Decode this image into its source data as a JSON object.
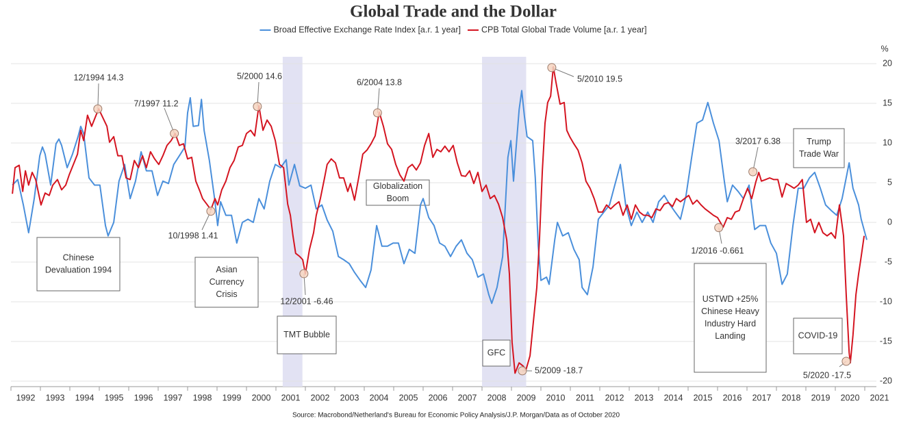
{
  "chart_data": {
    "type": "line",
    "title": "Global Trade and the Dollar",
    "y_label": "%",
    "source": "Source: Macrobond/Netherland's Bureau for Economic Policy Analysis/J.P. Morgan/Data as of October 2020",
    "xlim": [
      1992,
      2022
    ],
    "xticks": [
      1992,
      1993,
      1994,
      1995,
      1996,
      1997,
      1998,
      1999,
      2000,
      2001,
      2002,
      2003,
      2004,
      2005,
      2006,
      2007,
      2008,
      2009,
      2010,
      2011,
      2012,
      2013,
      2014,
      2015,
      2016,
      2017,
      2018,
      2019,
      2020,
      2021
    ],
    "ylim": [
      -20,
      20
    ],
    "yticks": [
      -20,
      -15,
      -10,
      -5,
      0,
      5,
      10,
      15,
      20
    ],
    "grid": true,
    "legend": "top",
    "shaded_regions": [
      [
        2001.23,
        2001.9
      ],
      [
        2008.0,
        2009.5
      ]
    ],
    "shade_color": "#e2e2f3",
    "series": [
      {
        "name": "Broad Effective Exchange Rate Index [a.r. 1 year]",
        "color": "#4a8fdb",
        "x": [
          1992.05,
          1992.23,
          1992.42,
          1992.6,
          1992.79,
          1992.98,
          1993.07,
          1993.16,
          1993.35,
          1993.53,
          1993.63,
          1993.72,
          1993.91,
          1994.09,
          1994.28,
          1994.37,
          1994.47,
          1994.65,
          1994.84,
          1995.02,
          1995.21,
          1995.3,
          1995.49,
          1995.67,
          1995.86,
          1996.05,
          1996.23,
          1996.42,
          1996.6,
          1996.79,
          1996.98,
          1997.16,
          1997.35,
          1997.53,
          1997.72,
          1997.91,
          1998.0,
          1998.09,
          1998.19,
          1998.37,
          1998.47,
          1998.56,
          1998.74,
          1998.93,
          1999.02,
          1999.12,
          1999.3,
          1999.49,
          1999.67,
          1999.86,
          2000.05,
          2000.23,
          2000.42,
          2000.6,
          2000.79,
          2000.98,
          2001.16,
          2001.35,
          2001.44,
          2001.63,
          2001.81,
          2002.0,
          2002.19,
          2002.37,
          2002.56,
          2002.74,
          2002.93,
          2003.12,
          2003.3,
          2003.49,
          2003.67,
          2003.86,
          2004.05,
          2004.23,
          2004.42,
          2004.6,
          2004.79,
          2004.98,
          2005.16,
          2005.35,
          2005.53,
          2005.72,
          2005.91,
          2006.0,
          2006.19,
          2006.37,
          2006.56,
          2006.74,
          2006.93,
          2007.12,
          2007.3,
          2007.49,
          2007.67,
          2007.86,
          2008.05,
          2008.23,
          2008.33,
          2008.51,
          2008.7,
          2008.88,
          2008.98,
          2009.07,
          2009.16,
          2009.26,
          2009.35,
          2009.44,
          2009.53,
          2009.72,
          2009.81,
          2009.91,
          2010.0,
          2010.19,
          2010.28,
          2010.47,
          2010.56,
          2010.74,
          2010.93,
          2011.12,
          2011.3,
          2011.4,
          2011.58,
          2011.77,
          2011.95,
          2012.14,
          2012.33,
          2012.51,
          2012.7,
          2012.88,
          2013.07,
          2013.26,
          2013.44,
          2013.63,
          2013.81,
          2014.0,
          2014.19,
          2014.37,
          2014.56,
          2014.74,
          2014.93,
          2015.12,
          2015.3,
          2015.49,
          2015.67,
          2015.86,
          2016.05,
          2016.23,
          2016.33,
          2016.51,
          2016.7,
          2016.88,
          2017.07,
          2017.26,
          2017.44,
          2017.63,
          2017.81,
          2018.0,
          2018.19,
          2018.37,
          2018.56,
          2018.74,
          2018.93,
          2019.12,
          2019.3,
          2019.49,
          2019.67,
          2019.86,
          2020.05,
          2020.23,
          2020.47,
          2020.6,
          2020.79,
          2020.88,
          2021.07
        ],
        "values": [
          4.7,
          5.4,
          2.2,
          -1.3,
          3.0,
          8.4,
          9.5,
          8.6,
          4.7,
          9.9,
          10.5,
          9.7,
          6.9,
          8.6,
          10.8,
          12.1,
          11.2,
          5.6,
          4.7,
          4.7,
          -0.4,
          -1.7,
          0.0,
          5.2,
          7.3,
          3.0,
          5.2,
          8.9,
          6.5,
          6.5,
          3.4,
          5.2,
          4.9,
          7.3,
          8.4,
          9.5,
          13.8,
          15.7,
          12.1,
          12.2,
          15.5,
          11.6,
          7.8,
          2.6,
          -0.4,
          2.6,
          0.9,
          0.9,
          -2.6,
          0.0,
          0.4,
          0.0,
          3.0,
          1.7,
          5.2,
          7.3,
          6.9,
          7.9,
          4.7,
          7.3,
          4.6,
          4.3,
          4.7,
          1.7,
          2.2,
          0.3,
          -1.1,
          -4.3,
          -4.7,
          -5.2,
          -6.3,
          -7.3,
          -8.2,
          -6.0,
          -0.4,
          -3.0,
          -3.0,
          -2.6,
          -2.6,
          -5.2,
          -3.4,
          -3.9,
          2.2,
          3.0,
          0.6,
          -0.4,
          -2.6,
          -3.0,
          -4.3,
          -3.0,
          -2.2,
          -3.9,
          -4.7,
          -6.9,
          -6.5,
          -9.1,
          -10.2,
          -8.2,
          -4.3,
          8.2,
          10.3,
          5.2,
          9.5,
          14.2,
          16.6,
          13.4,
          10.8,
          10.3,
          5.6,
          -3.0,
          -7.3,
          -6.9,
          -7.8,
          -2.2,
          0.0,
          -1.7,
          -1.3,
          -3.4,
          -4.7,
          -8.2,
          -9.1,
          -5.6,
          0.4,
          1.3,
          2.2,
          4.7,
          7.3,
          2.2,
          -0.4,
          1.3,
          0.0,
          1.3,
          0.0,
          2.6,
          3.4,
          2.3,
          1.3,
          0.4,
          3.4,
          8.2,
          12.5,
          12.9,
          15.1,
          12.5,
          10.3,
          5.2,
          2.6,
          4.7,
          3.9,
          3.0,
          4.7,
          -0.9,
          -0.4,
          -0.4,
          -2.6,
          -3.9,
          -7.8,
          -6.5,
          -0.4,
          4.3,
          4.3,
          5.6,
          6.3,
          4.3,
          2.2,
          1.5,
          0.9,
          3.0,
          7.5,
          4.3,
          2.2,
          0.4,
          -2.2
        ]
      },
      {
        "name": "CPB Total Global Trade Volume [a.r. 1 year]",
        "color": "#d41420",
        "x": [
          1992.05,
          1992.14,
          1992.28,
          1992.4,
          1992.49,
          1992.6,
          1992.72,
          1992.84,
          1993.02,
          1993.16,
          1993.3,
          1993.42,
          1993.58,
          1993.72,
          1993.86,
          1993.98,
          1994.12,
          1994.26,
          1994.37,
          1994.47,
          1994.6,
          1994.74,
          1994.88,
          1994.98,
          1995.12,
          1995.26,
          1995.35,
          1995.49,
          1995.63,
          1995.77,
          1995.91,
          1996.05,
          1996.19,
          1996.33,
          1996.47,
          1996.6,
          1996.74,
          1996.88,
          1997.02,
          1997.16,
          1997.3,
          1997.44,
          1997.58,
          1997.72,
          1997.86,
          1998.0,
          1998.14,
          1998.28,
          1998.42,
          1998.51,
          1998.65,
          1998.79,
          1998.93,
          1999.02,
          1999.16,
          1999.3,
          1999.44,
          1999.58,
          1999.72,
          1999.86,
          2000.0,
          2000.14,
          2000.28,
          2000.42,
          2000.56,
          2000.7,
          2000.84,
          2000.98,
          2001.12,
          2001.26,
          2001.4,
          2001.49,
          2001.58,
          2001.67,
          2001.81,
          2001.91,
          2002.0,
          2002.14,
          2002.28,
          2002.37,
          2002.51,
          2002.65,
          2002.74,
          2002.88,
          2003.02,
          2003.16,
          2003.3,
          2003.44,
          2003.53,
          2003.67,
          2003.81,
          2003.95,
          2004.09,
          2004.23,
          2004.37,
          2004.51,
          2004.65,
          2004.79,
          2004.93,
          2005.07,
          2005.21,
          2005.35,
          2005.49,
          2005.63,
          2005.77,
          2005.91,
          2006.05,
          2006.19,
          2006.33,
          2006.47,
          2006.6,
          2006.74,
          2006.88,
          2007.02,
          2007.16,
          2007.3,
          2007.44,
          2007.58,
          2007.72,
          2007.86,
          2008.0,
          2008.14,
          2008.28,
          2008.42,
          2008.56,
          2008.7,
          2008.84,
          2008.93,
          2009.02,
          2009.12,
          2009.26,
          2009.4,
          2009.49,
          2009.63,
          2009.72,
          2009.86,
          2009.95,
          2010.05,
          2010.14,
          2010.23,
          2010.33,
          2010.42,
          2010.51,
          2010.65,
          2010.79,
          2010.88,
          2010.98,
          2011.12,
          2011.26,
          2011.4,
          2011.53,
          2011.67,
          2011.81,
          2011.95,
          2012.09,
          2012.23,
          2012.37,
          2012.51,
          2012.65,
          2012.79,
          2012.93,
          2013.07,
          2013.21,
          2013.35,
          2013.49,
          2013.63,
          2013.77,
          2013.91,
          2014.05,
          2014.19,
          2014.33,
          2014.47,
          2014.6,
          2014.74,
          2014.88,
          2015.02,
          2015.16,
          2015.3,
          2015.44,
          2015.58,
          2015.72,
          2015.86,
          2016.0,
          2016.19,
          2016.33,
          2016.47,
          2016.6,
          2016.74,
          2016.88,
          2017.02,
          2017.16,
          2017.3,
          2017.4,
          2017.49,
          2017.63,
          2017.77,
          2017.91,
          2018.05,
          2018.19,
          2018.33,
          2018.47,
          2018.6,
          2018.74,
          2018.88,
          2019.02,
          2019.16,
          2019.3,
          2019.44,
          2019.58,
          2019.72,
          2019.86,
          2020.0,
          2020.14,
          2020.28,
          2020.37,
          2020.47,
          2020.51,
          2020.6,
          2020.7,
          2020.79,
          2020.88,
          2020.98
        ],
        "values": [
          3.6,
          6.9,
          7.2,
          3.9,
          6.5,
          4.7,
          6.3,
          5.4,
          2.2,
          3.7,
          3.4,
          4.7,
          5.4,
          4.1,
          4.7,
          6.0,
          7.3,
          8.6,
          11.6,
          10.3,
          13.5,
          12.1,
          13.4,
          14.3,
          13.2,
          12.1,
          10.1,
          10.8,
          8.4,
          8.4,
          5.6,
          5.4,
          7.8,
          6.9,
          8.4,
          6.9,
          8.9,
          8.0,
          7.3,
          8.4,
          9.7,
          10.3,
          11.2,
          9.7,
          9.9,
          8.0,
          8.2,
          5.2,
          3.9,
          3.0,
          2.3,
          1.6,
          3.0,
          2.2,
          4.1,
          5.2,
          6.9,
          7.8,
          9.5,
          9.7,
          11.2,
          11.6,
          10.9,
          14.7,
          11.6,
          12.9,
          12.1,
          10.3,
          7.3,
          6.9,
          2.3,
          0.9,
          -1.7,
          -3.9,
          -4.3,
          -4.7,
          -6.5,
          -3.4,
          -1.3,
          0.9,
          3.0,
          5.6,
          7.3,
          8.0,
          7.5,
          5.6,
          5.6,
          3.9,
          4.9,
          2.8,
          5.6,
          8.6,
          9.1,
          9.9,
          10.9,
          13.9,
          12.1,
          9.9,
          9.2,
          7.3,
          6.0,
          5.2,
          6.9,
          7.3,
          6.6,
          7.5,
          9.7,
          11.2,
          8.2,
          9.2,
          8.9,
          9.6,
          8.9,
          9.7,
          7.5,
          5.9,
          5.8,
          6.5,
          4.9,
          6.3,
          3.9,
          4.7,
          3.0,
          3.4,
          2.3,
          0.6,
          -2.2,
          -6.5,
          -15.1,
          -19.0,
          -17.7,
          -18.1,
          -18.6,
          -16.8,
          -13.4,
          -8.2,
          -2.2,
          6.5,
          12.5,
          15.1,
          15.9,
          19.6,
          17.7,
          14.9,
          15.1,
          11.6,
          10.8,
          9.9,
          9.1,
          7.5,
          5.2,
          4.3,
          3.0,
          1.3,
          1.3,
          2.2,
          1.7,
          2.2,
          2.6,
          0.9,
          2.2,
          0.4,
          2.2,
          1.3,
          0.9,
          0.9,
          0.6,
          1.7,
          1.5,
          2.3,
          2.5,
          2.0,
          3.0,
          2.6,
          3.0,
          3.4,
          2.3,
          2.8,
          2.2,
          1.7,
          1.3,
          0.9,
          0.6,
          -0.6,
          0.6,
          0.4,
          1.3,
          1.5,
          3.0,
          4.3,
          3.0,
          5.1,
          6.3,
          5.2,
          5.4,
          5.6,
          5.4,
          5.4,
          3.2,
          4.9,
          4.6,
          4.3,
          4.7,
          5.4,
          0.0,
          0.4,
          -1.3,
          0.0,
          -1.3,
          -1.7,
          -1.3,
          -2.0,
          2.2,
          -1.7,
          -9.1,
          -16.4,
          -17.7,
          -14.2,
          -9.1,
          -6.5,
          -4.3,
          -1.7
        ]
      }
    ],
    "annotations": [
      {
        "label": "12/1994 14.3",
        "x": 1994.95,
        "y": 14.3
      },
      {
        "label": "7/1997 11.2",
        "x": 1997.55,
        "y": 11.2
      },
      {
        "label": "10/1998 1.41",
        "x": 1998.79,
        "y": 1.41
      },
      {
        "label": "5/2000 14.6",
        "x": 2000.37,
        "y": 14.6
      },
      {
        "label": "12/2001 -6.46",
        "x": 2001.95,
        "y": -6.46
      },
      {
        "label": "6/2004 13.8",
        "x": 2004.45,
        "y": 13.8
      },
      {
        "label": "5/2009 -18.7",
        "x": 2009.37,
        "y": -18.7
      },
      {
        "label": "5/2010 19.5",
        "x": 2010.37,
        "y": 19.5
      },
      {
        "label": "1/2016 -0.661",
        "x": 2016.04,
        "y": -0.661
      },
      {
        "label": "3/2017 6.38",
        "x": 2017.2,
        "y": 6.38
      },
      {
        "label": "5/2020 -17.5",
        "x": 2020.37,
        "y": -17.5
      }
    ],
    "boxes": [
      {
        "lines": [
          "Chinese",
          "Devaluation 1994"
        ]
      },
      {
        "lines": [
          "Asian",
          "Currency",
          "Crisis"
        ]
      },
      {
        "lines": [
          "TMT Bubble"
        ]
      },
      {
        "lines": [
          "Globalization",
          "Boom"
        ]
      },
      {
        "lines": [
          "GFC"
        ]
      },
      {
        "lines": [
          "USTWD +25%",
          "Chinese Heavy",
          "Industry Hard",
          "Landing"
        ]
      },
      {
        "lines": [
          "Trump",
          "Trade War"
        ]
      },
      {
        "lines": [
          "COVID-19"
        ]
      }
    ]
  }
}
